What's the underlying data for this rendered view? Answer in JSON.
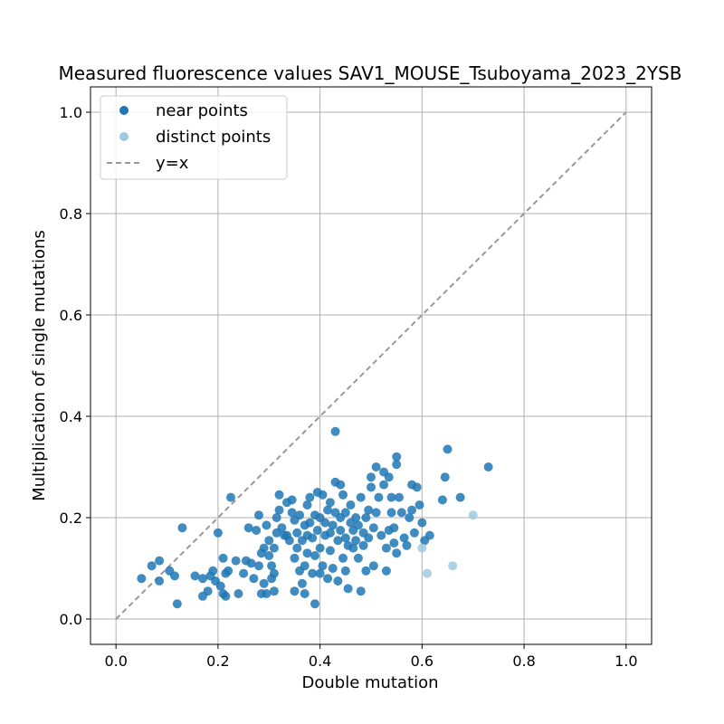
{
  "chart_data": {
    "type": "scatter",
    "title": "Measured fluorescence values SAV1_MOUSE_Tsuboyama_2023_2YSB",
    "xlabel": "Double mutation",
    "ylabel": "Multiplication of single mutations",
    "xlim": [
      -0.05,
      1.05
    ],
    "ylim": [
      -0.05,
      1.05
    ],
    "xticks": [
      "0.0",
      "0.2",
      "0.4",
      "0.6",
      "0.8",
      "1.0"
    ],
    "yticks": [
      "0.0",
      "0.2",
      "0.4",
      "0.6",
      "0.8",
      "1.0"
    ],
    "grid": true,
    "legend_position": "top-left",
    "legend": [
      "near points",
      "distinct points",
      "y=x"
    ],
    "colors": {
      "near": "#1f77b4",
      "distinct": "#9ecae1",
      "reference": "#999999"
    },
    "series": [
      {
        "name": "near points",
        "points": [
          [
            0.05,
            0.08
          ],
          [
            0.07,
            0.105
          ],
          [
            0.085,
            0.115
          ],
          [
            0.085,
            0.075
          ],
          [
            0.105,
            0.095
          ],
          [
            0.115,
            0.085
          ],
          [
            0.12,
            0.03
          ],
          [
            0.13,
            0.18
          ],
          [
            0.155,
            0.085
          ],
          [
            0.17,
            0.045
          ],
          [
            0.17,
            0.08
          ],
          [
            0.18,
            0.055
          ],
          [
            0.185,
            0.085
          ],
          [
            0.19,
            0.095
          ],
          [
            0.195,
            0.075
          ],
          [
            0.2,
            0.17
          ],
          [
            0.205,
            0.065
          ],
          [
            0.21,
            0.05
          ],
          [
            0.21,
            0.12
          ],
          [
            0.215,
            0.09
          ],
          [
            0.215,
            0.045
          ],
          [
            0.22,
            0.095
          ],
          [
            0.225,
            0.24
          ],
          [
            0.235,
            0.115
          ],
          [
            0.24,
            0.05
          ],
          [
            0.25,
            0.09
          ],
          [
            0.255,
            0.115
          ],
          [
            0.26,
            0.18
          ],
          [
            0.265,
            0.11
          ],
          [
            0.27,
            0.08
          ],
          [
            0.275,
            0.175
          ],
          [
            0.28,
            0.105
          ],
          [
            0.28,
            0.205
          ],
          [
            0.285,
            0.05
          ],
          [
            0.285,
            0.13
          ],
          [
            0.29,
            0.14
          ],
          [
            0.29,
            0.07
          ],
          [
            0.295,
            0.05
          ],
          [
            0.295,
            0.185
          ],
          [
            0.3,
            0.155
          ],
          [
            0.3,
            0.125
          ],
          [
            0.305,
            0.105
          ],
          [
            0.305,
            0.08
          ],
          [
            0.31,
            0.09
          ],
          [
            0.31,
            0.055
          ],
          [
            0.31,
            0.14
          ],
          [
            0.315,
            0.2
          ],
          [
            0.315,
            0.17
          ],
          [
            0.32,
            0.245
          ],
          [
            0.32,
            0.215
          ],
          [
            0.325,
            0.18
          ],
          [
            0.33,
            0.165
          ],
          [
            0.335,
            0.23
          ],
          [
            0.335,
            0.165
          ],
          [
            0.34,
            0.155
          ],
          [
            0.345,
            0.21
          ],
          [
            0.345,
            0.235
          ],
          [
            0.35,
            0.195
          ],
          [
            0.35,
            0.12
          ],
          [
            0.35,
            0.055
          ],
          [
            0.355,
            0.14
          ],
          [
            0.355,
            0.17
          ],
          [
            0.36,
            0.095
          ],
          [
            0.36,
            0.205
          ],
          [
            0.365,
            0.07
          ],
          [
            0.365,
            0.155
          ],
          [
            0.37,
            0.185
          ],
          [
            0.37,
            0.105
          ],
          [
            0.37,
            0.05
          ],
          [
            0.375,
            0.13
          ],
          [
            0.375,
            0.225
          ],
          [
            0.375,
            0.165
          ],
          [
            0.38,
            0.24
          ],
          [
            0.38,
            0.19
          ],
          [
            0.385,
            0.09
          ],
          [
            0.385,
            0.16
          ],
          [
            0.39,
            0.205
          ],
          [
            0.39,
            0.03
          ],
          [
            0.39,
            0.125
          ],
          [
            0.395,
            0.25
          ],
          [
            0.395,
            0.175
          ],
          [
            0.4,
            0.09
          ],
          [
            0.4,
            0.14
          ],
          [
            0.4,
            0.2
          ],
          [
            0.405,
            0.245
          ],
          [
            0.405,
            0.105
          ],
          [
            0.41,
            0.165
          ],
          [
            0.41,
            0.19
          ],
          [
            0.415,
            0.215
          ],
          [
            0.415,
            0.08
          ],
          [
            0.42,
            0.135
          ],
          [
            0.42,
            0.17
          ],
          [
            0.42,
            0.23
          ],
          [
            0.425,
            0.1
          ],
          [
            0.425,
            0.185
          ],
          [
            0.43,
            0.37
          ],
          [
            0.43,
            0.27
          ],
          [
            0.43,
            0.21
          ],
          [
            0.435,
            0.155
          ],
          [
            0.435,
            0.075
          ],
          [
            0.44,
            0.265
          ],
          [
            0.44,
            0.175
          ],
          [
            0.44,
            0.2
          ],
          [
            0.445,
            0.12
          ],
          [
            0.445,
            0.245
          ],
          [
            0.45,
            0.095
          ],
          [
            0.45,
            0.16
          ],
          [
            0.45,
            0.21
          ],
          [
            0.455,
            0.145
          ],
          [
            0.455,
            0.06
          ],
          [
            0.46,
            0.19
          ],
          [
            0.46,
            0.225
          ],
          [
            0.465,
            0.175
          ],
          [
            0.465,
            0.14
          ],
          [
            0.47,
            0.2
          ],
          [
            0.47,
            0.155
          ],
          [
            0.475,
            0.12
          ],
          [
            0.475,
            0.185
          ],
          [
            0.48,
            0.24
          ],
          [
            0.48,
            0.055
          ],
          [
            0.485,
            0.17
          ],
          [
            0.485,
            0.145
          ],
          [
            0.49,
            0.2
          ],
          [
            0.49,
            0.095
          ],
          [
            0.495,
            0.215
          ],
          [
            0.495,
            0.16
          ],
          [
            0.5,
            0.28
          ],
          [
            0.5,
            0.26
          ],
          [
            0.505,
            0.105
          ],
          [
            0.505,
            0.18
          ],
          [
            0.51,
            0.3
          ],
          [
            0.51,
            0.21
          ],
          [
            0.515,
            0.24
          ],
          [
            0.52,
            0.165
          ],
          [
            0.525,
            0.29
          ],
          [
            0.525,
            0.265
          ],
          [
            0.53,
            0.14
          ],
          [
            0.53,
            0.095
          ],
          [
            0.535,
            0.28
          ],
          [
            0.535,
            0.175
          ],
          [
            0.54,
            0.21
          ],
          [
            0.54,
            0.24
          ],
          [
            0.545,
            0.18
          ],
          [
            0.545,
            0.15
          ],
          [
            0.55,
            0.32
          ],
          [
            0.55,
            0.305
          ],
          [
            0.55,
            0.13
          ],
          [
            0.555,
            0.24
          ],
          [
            0.56,
            0.21
          ],
          [
            0.565,
            0.16
          ],
          [
            0.57,
            0.145
          ],
          [
            0.575,
            0.2
          ],
          [
            0.58,
            0.215
          ],
          [
            0.58,
            0.265
          ],
          [
            0.585,
            0.17
          ],
          [
            0.59,
            0.26
          ],
          [
            0.595,
            0.225
          ],
          [
            0.6,
            0.19
          ],
          [
            0.605,
            0.155
          ],
          [
            0.615,
            0.165
          ],
          [
            0.64,
            0.235
          ],
          [
            0.645,
            0.28
          ],
          [
            0.65,
            0.335
          ],
          [
            0.675,
            0.24
          ],
          [
            0.73,
            0.3
          ]
        ]
      },
      {
        "name": "distinct points",
        "points": [
          [
            0.6,
            0.14
          ],
          [
            0.61,
            0.09
          ],
          [
            0.66,
            0.105
          ],
          [
            0.7,
            0.205
          ]
        ]
      }
    ]
  }
}
